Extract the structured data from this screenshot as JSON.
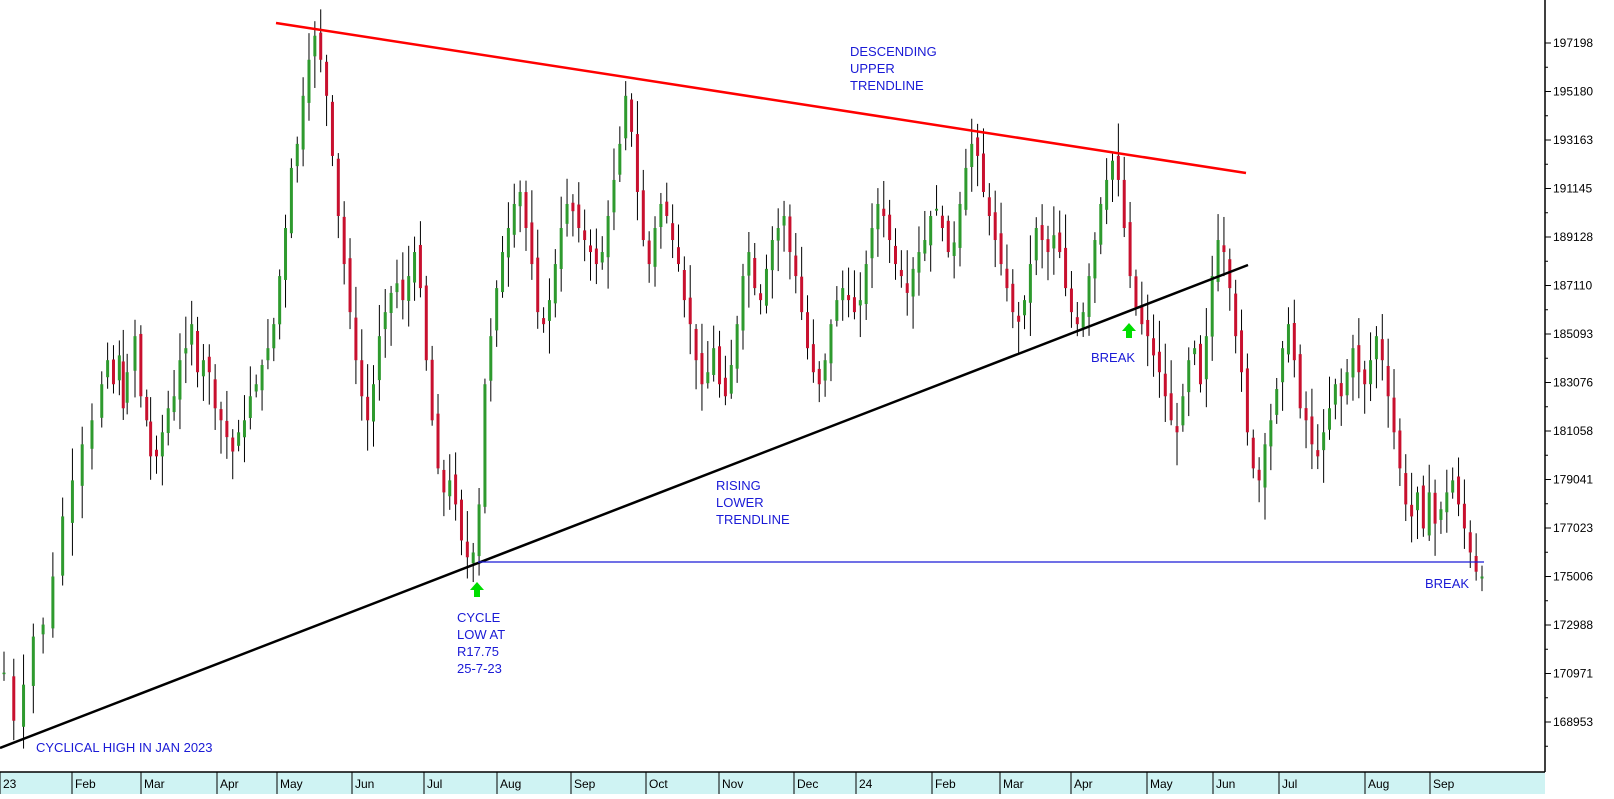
{
  "chart_data": {
    "type": "ohlc",
    "y_ticks": [
      "197198",
      "195180",
      "193163",
      "191145",
      "189128",
      "187110",
      "185093",
      "183076",
      "181058",
      "179041",
      "177023",
      "175006",
      "172988",
      "170971",
      "168953"
    ],
    "x_ticks": [
      "23",
      "Feb",
      "Mar",
      "Apr",
      "May",
      "Jun",
      "Jul",
      "Aug",
      "Sep",
      "Oct",
      "Nov",
      "Dec",
      "24",
      "Feb",
      "Mar",
      "Apr",
      "May",
      "Jun",
      "Jul",
      "Aug",
      "Sep"
    ],
    "ylim": [
      167500,
      199000
    ],
    "series": [
      {
        "values": [
          {
            "t": 0,
            "v": 171000
          },
          {
            "t": 0.5,
            "v": 169000
          },
          {
            "t": 1,
            "v": 170500
          },
          {
            "t": 1.5,
            "v": 172500
          },
          {
            "t": 2,
            "v": 173000
          },
          {
            "t": 2.5,
            "v": 175000
          },
          {
            "t": 3,
            "v": 177500
          },
          {
            "t": 3.5,
            "v": 179000
          },
          {
            "t": 4,
            "v": 180500
          },
          {
            "t": 4.5,
            "v": 181500
          },
          {
            "t": 5,
            "v": 183000
          },
          {
            "t": 5.3,
            "v": 184000
          },
          {
            "t": 5.6,
            "v": 183000
          },
          {
            "t": 5.9,
            "v": 184200
          },
          {
            "t": 6.1,
            "v": 182000
          },
          {
            "t": 6.3,
            "v": 183500
          },
          {
            "t": 6.7,
            "v": 185000
          },
          {
            "t": 7,
            "v": 182500
          },
          {
            "t": 7.3,
            "v": 181500
          },
          {
            "t": 7.5,
            "v": 180000
          },
          {
            "t": 7.8,
            "v": 180000
          },
          {
            "t": 8.1,
            "v": 181000
          },
          {
            "t": 8.4,
            "v": 182000
          },
          {
            "t": 8.7,
            "v": 182500
          },
          {
            "t": 9,
            "v": 184000
          },
          {
            "t": 9.3,
            "v": 184500
          },
          {
            "t": 9.6,
            "v": 185500
          },
          {
            "t": 9.9,
            "v": 183500
          },
          {
            "t": 10.2,
            "v": 184000
          },
          {
            "t": 10.5,
            "v": 183500
          },
          {
            "t": 10.8,
            "v": 182000
          },
          {
            "t": 11.1,
            "v": 181500
          },
          {
            "t": 11.4,
            "v": 180800
          },
          {
            "t": 11.7,
            "v": 180200
          },
          {
            "t": 12,
            "v": 181000
          },
          {
            "t": 12.3,
            "v": 181500
          },
          {
            "t": 12.6,
            "v": 182500
          },
          {
            "t": 12.9,
            "v": 183000
          },
          {
            "t": 13.2,
            "v": 183800
          },
          {
            "t": 13.5,
            "v": 184500
          },
          {
            "t": 13.8,
            "v": 185500
          },
          {
            "t": 14.1,
            "v": 187500
          },
          {
            "t": 14.4,
            "v": 189500
          },
          {
            "t": 14.7,
            "v": 192000
          },
          {
            "t": 15,
            "v": 193000
          },
          {
            "t": 15.3,
            "v": 195000
          },
          {
            "t": 15.6,
            "v": 196500
          },
          {
            "t": 15.9,
            "v": 197500
          },
          {
            "t": 16.2,
            "v": 196500
          },
          {
            "t": 16.5,
            "v": 195000
          },
          {
            "t": 16.8,
            "v": 192500
          },
          {
            "t": 17.1,
            "v": 190000
          },
          {
            "t": 17.4,
            "v": 188000
          },
          {
            "t": 17.7,
            "v": 186000
          },
          {
            "t": 18,
            "v": 184000
          },
          {
            "t": 18.3,
            "v": 182500
          },
          {
            "t": 18.6,
            "v": 181500
          },
          {
            "t": 18.9,
            "v": 183000
          },
          {
            "t": 19.2,
            "v": 185000
          },
          {
            "t": 19.5,
            "v": 186000
          },
          {
            "t": 19.8,
            "v": 186800
          },
          {
            "t": 20.1,
            "v": 187200
          },
          {
            "t": 20.4,
            "v": 186500
          },
          {
            "t": 20.7,
            "v": 187500
          },
          {
            "t": 21,
            "v": 188500
          },
          {
            "t": 21.3,
            "v": 187000
          },
          {
            "t": 21.6,
            "v": 184000
          },
          {
            "t": 21.9,
            "v": 181500
          },
          {
            "t": 22.2,
            "v": 179500
          },
          {
            "t": 22.5,
            "v": 178500
          },
          {
            "t": 22.8,
            "v": 179000
          },
          {
            "t": 23.1,
            "v": 178000
          },
          {
            "t": 23.4,
            "v": 176500
          },
          {
            "t": 23.7,
            "v": 175800
          },
          {
            "t": 24,
            "v": 176000
          },
          {
            "t": 24.3,
            "v": 178000
          },
          {
            "t": 24.6,
            "v": 183000
          },
          {
            "t": 24.9,
            "v": 185000
          },
          {
            "t": 25.2,
            "v": 187000
          },
          {
            "t": 25.5,
            "v": 188500
          },
          {
            "t": 25.8,
            "v": 189500
          },
          {
            "t": 26.1,
            "v": 190500
          },
          {
            "t": 26.4,
            "v": 191000
          },
          {
            "t": 26.7,
            "v": 189500
          },
          {
            "t": 27,
            "v": 188000
          },
          {
            "t": 27.3,
            "v": 186000
          },
          {
            "t": 27.6,
            "v": 185500
          },
          {
            "t": 27.9,
            "v": 186500
          },
          {
            "t": 28.2,
            "v": 188000
          },
          {
            "t": 28.5,
            "v": 189500
          },
          {
            "t": 28.8,
            "v": 190500
          },
          {
            "t": 29.1,
            "v": 190200
          },
          {
            "t": 29.4,
            "v": 189500
          },
          {
            "t": 29.7,
            "v": 189000
          },
          {
            "t": 30,
            "v": 188500
          },
          {
            "t": 30.3,
            "v": 188000
          },
          {
            "t": 30.6,
            "v": 188500
          },
          {
            "t": 30.9,
            "v": 190000
          },
          {
            "t": 31.2,
            "v": 191500
          },
          {
            "t": 31.5,
            "v": 193000
          },
          {
            "t": 31.8,
            "v": 195000
          },
          {
            "t": 32.1,
            "v": 193500
          },
          {
            "t": 32.4,
            "v": 191000
          },
          {
            "t": 32.7,
            "v": 189000
          },
          {
            "t": 33,
            "v": 188000
          },
          {
            "t": 33.3,
            "v": 189500
          },
          {
            "t": 33.6,
            "v": 190500
          },
          {
            "t": 33.9,
            "v": 190000
          },
          {
            "t": 34.2,
            "v": 189000
          },
          {
            "t": 34.5,
            "v": 188000
          },
          {
            "t": 34.8,
            "v": 186500
          },
          {
            "t": 35.1,
            "v": 185500
          },
          {
            "t": 35.4,
            "v": 184000
          },
          {
            "t": 35.7,
            "v": 183000
          },
          {
            "t": 36,
            "v": 183500
          },
          {
            "t": 36.3,
            "v": 184500
          },
          {
            "t": 36.6,
            "v": 183000
          },
          {
            "t": 36.9,
            "v": 182500
          },
          {
            "t": 37.2,
            "v": 183800
          },
          {
            "t": 37.5,
            "v": 185500
          },
          {
            "t": 37.8,
            "v": 187500
          },
          {
            "t": 38.1,
            "v": 188500
          },
          {
            "t": 38.4,
            "v": 187000
          },
          {
            "t": 38.7,
            "v": 186500
          },
          {
            "t": 39,
            "v": 187800
          },
          {
            "t": 39.3,
            "v": 189000
          },
          {
            "t": 39.6,
            "v": 189500
          },
          {
            "t": 39.9,
            "v": 190000
          },
          {
            "t": 40.2,
            "v": 188500
          },
          {
            "t": 40.5,
            "v": 187500
          },
          {
            "t": 40.8,
            "v": 186000
          },
          {
            "t": 41.1,
            "v": 184500
          },
          {
            "t": 41.4,
            "v": 183500
          },
          {
            "t": 41.7,
            "v": 183000
          },
          {
            "t": 42,
            "v": 184000
          },
          {
            "t": 42.3,
            "v": 185500
          },
          {
            "t": 42.6,
            "v": 186500
          },
          {
            "t": 42.9,
            "v": 187000
          },
          {
            "t": 43.2,
            "v": 186500
          },
          {
            "t": 43.5,
            "v": 186000
          },
          {
            "t": 43.8,
            "v": 186500
          },
          {
            "t": 44.1,
            "v": 188000
          },
          {
            "t": 44.4,
            "v": 189500
          },
          {
            "t": 44.7,
            "v": 190500
          },
          {
            "t": 45,
            "v": 190000
          },
          {
            "t": 45.3,
            "v": 189000
          },
          {
            "t": 45.6,
            "v": 188000
          },
          {
            "t": 45.9,
            "v": 187500
          },
          {
            "t": 46.2,
            "v": 186800
          },
          {
            "t": 46.5,
            "v": 187800
          },
          {
            "t": 46.8,
            "v": 188500
          },
          {
            "t": 47.1,
            "v": 189000
          },
          {
            "t": 47.4,
            "v": 190000
          },
          {
            "t": 47.7,
            "v": 190300
          },
          {
            "t": 48,
            "v": 189500
          },
          {
            "t": 48.3,
            "v": 188500
          },
          {
            "t": 48.6,
            "v": 188900
          },
          {
            "t": 48.9,
            "v": 190500
          },
          {
            "t": 49.2,
            "v": 192000
          },
          {
            "t": 49.5,
            "v": 193000
          },
          {
            "t": 49.8,
            "v": 192500
          },
          {
            "t": 50.1,
            "v": 191000
          },
          {
            "t": 50.4,
            "v": 190000
          },
          {
            "t": 50.7,
            "v": 189000
          },
          {
            "t": 51,
            "v": 188000
          },
          {
            "t": 51.3,
            "v": 187000
          },
          {
            "t": 51.6,
            "v": 186000
          },
          {
            "t": 51.9,
            "v": 185600
          },
          {
            "t": 52.2,
            "v": 186500
          },
          {
            "t": 52.5,
            "v": 188000
          },
          {
            "t": 52.8,
            "v": 189500
          },
          {
            "t": 53.1,
            "v": 189000
          },
          {
            "t": 53.4,
            "v": 188500
          },
          {
            "t": 53.7,
            "v": 189200
          },
          {
            "t": 54,
            "v": 188500
          },
          {
            "t": 54.3,
            "v": 187000
          },
          {
            "t": 54.6,
            "v": 186000
          },
          {
            "t": 54.9,
            "v": 185500
          },
          {
            "t": 55.2,
            "v": 186000
          },
          {
            "t": 55.5,
            "v": 187500
          },
          {
            "t": 55.8,
            "v": 189000
          },
          {
            "t": 56.1,
            "v": 190500
          },
          {
            "t": 56.4,
            "v": 191500
          },
          {
            "t": 56.7,
            "v": 192300
          },
          {
            "t": 57,
            "v": 191500
          },
          {
            "t": 57.3,
            "v": 189500
          },
          {
            "t": 57.6,
            "v": 187500
          },
          {
            "t": 57.9,
            "v": 186200
          },
          {
            "t": 58.2,
            "v": 185500
          },
          {
            "t": 58.5,
            "v": 185000
          },
          {
            "t": 58.8,
            "v": 184200
          },
          {
            "t": 59.1,
            "v": 183500
          },
          {
            "t": 59.4,
            "v": 182500
          },
          {
            "t": 59.7,
            "v": 181500
          },
          {
            "t": 60,
            "v": 181000
          },
          {
            "t": 60.3,
            "v": 182500
          },
          {
            "t": 60.6,
            "v": 184000
          },
          {
            "t": 60.9,
            "v": 184500
          },
          {
            "t": 61.2,
            "v": 183000
          },
          {
            "t": 61.5,
            "v": 185000
          },
          {
            "t": 61.8,
            "v": 187500
          },
          {
            "t": 62.1,
            "v": 189000
          },
          {
            "t": 62.4,
            "v": 188500
          },
          {
            "t": 62.7,
            "v": 187000
          },
          {
            "t": 63,
            "v": 185000
          },
          {
            "t": 63.3,
            "v": 183500
          },
          {
            "t": 63.6,
            "v": 181000
          },
          {
            "t": 63.9,
            "v": 179500
          },
          {
            "t": 64.2,
            "v": 179000
          },
          {
            "t": 64.5,
            "v": 180500
          },
          {
            "t": 64.8,
            "v": 181500
          },
          {
            "t": 65.1,
            "v": 182800
          },
          {
            "t": 65.4,
            "v": 184500
          },
          {
            "t": 65.7,
            "v": 185500
          },
          {
            "t": 66,
            "v": 184000
          },
          {
            "t": 66.3,
            "v": 182000
          },
          {
            "t": 66.6,
            "v": 181500
          },
          {
            "t": 66.9,
            "v": 180500
          },
          {
            "t": 67.2,
            "v": 180000
          },
          {
            "t": 67.5,
            "v": 181000
          },
          {
            "t": 67.8,
            "v": 182000
          },
          {
            "t": 68.1,
            "v": 183000
          },
          {
            "t": 68.4,
            "v": 182500
          },
          {
            "t": 68.7,
            "v": 183500
          },
          {
            "t": 69,
            "v": 184500
          },
          {
            "t": 69.3,
            "v": 183500
          },
          {
            "t": 69.6,
            "v": 183000
          },
          {
            "t": 69.9,
            "v": 184000
          },
          {
            "t": 70.2,
            "v": 185000
          },
          {
            "t": 70.5,
            "v": 184000
          },
          {
            "t": 70.8,
            "v": 182500
          },
          {
            "t": 71.1,
            "v": 181000
          },
          {
            "t": 71.4,
            "v": 179500
          },
          {
            "t": 71.7,
            "v": 178000
          },
          {
            "t": 72,
            "v": 177500
          },
          {
            "t": 72.3,
            "v": 178500
          },
          {
            "t": 72.6,
            "v": 177000
          },
          {
            "t": 72.9,
            "v": 178500
          },
          {
            "t": 73.2,
            "v": 177200
          },
          {
            "t": 73.5,
            "v": 177800
          },
          {
            "t": 73.8,
            "v": 178500
          },
          {
            "t": 74.1,
            "v": 179000
          },
          {
            "t": 74.4,
            "v": 178000
          },
          {
            "t": 74.7,
            "v": 177000
          },
          {
            "t": 75,
            "v": 176000
          },
          {
            "t": 75.3,
            "v": 175200
          },
          {
            "t": 75.6,
            "v": 175000
          }
        ]
      }
    ],
    "annotations": [
      {
        "lines": [
          "DESCENDING",
          "UPPER",
          "TRENDLINE"
        ]
      },
      {
        "lines": [
          "RISING",
          "LOWER",
          "TRENDLINE"
        ]
      },
      {
        "lines": [
          "CYCLE",
          "LOW AT",
          "R17.75",
          "25-7-23"
        ]
      },
      {
        "lines": [
          "BREAK"
        ]
      },
      {
        "lines": [
          "BREAK"
        ]
      },
      {
        "lines": [
          "CYCLICAL HIGH IN JAN 2023"
        ]
      }
    ],
    "colors": {
      "up": "#2e9a2e",
      "down": "#c8102e",
      "upper_trendline": "#ff0000",
      "lower_trendline": "#000000",
      "support_line": "#1a1ad6",
      "annotation_text": "#1a1ad6",
      "arrow": "#00dd00",
      "x_axis_band": "#cff3f3"
    }
  }
}
